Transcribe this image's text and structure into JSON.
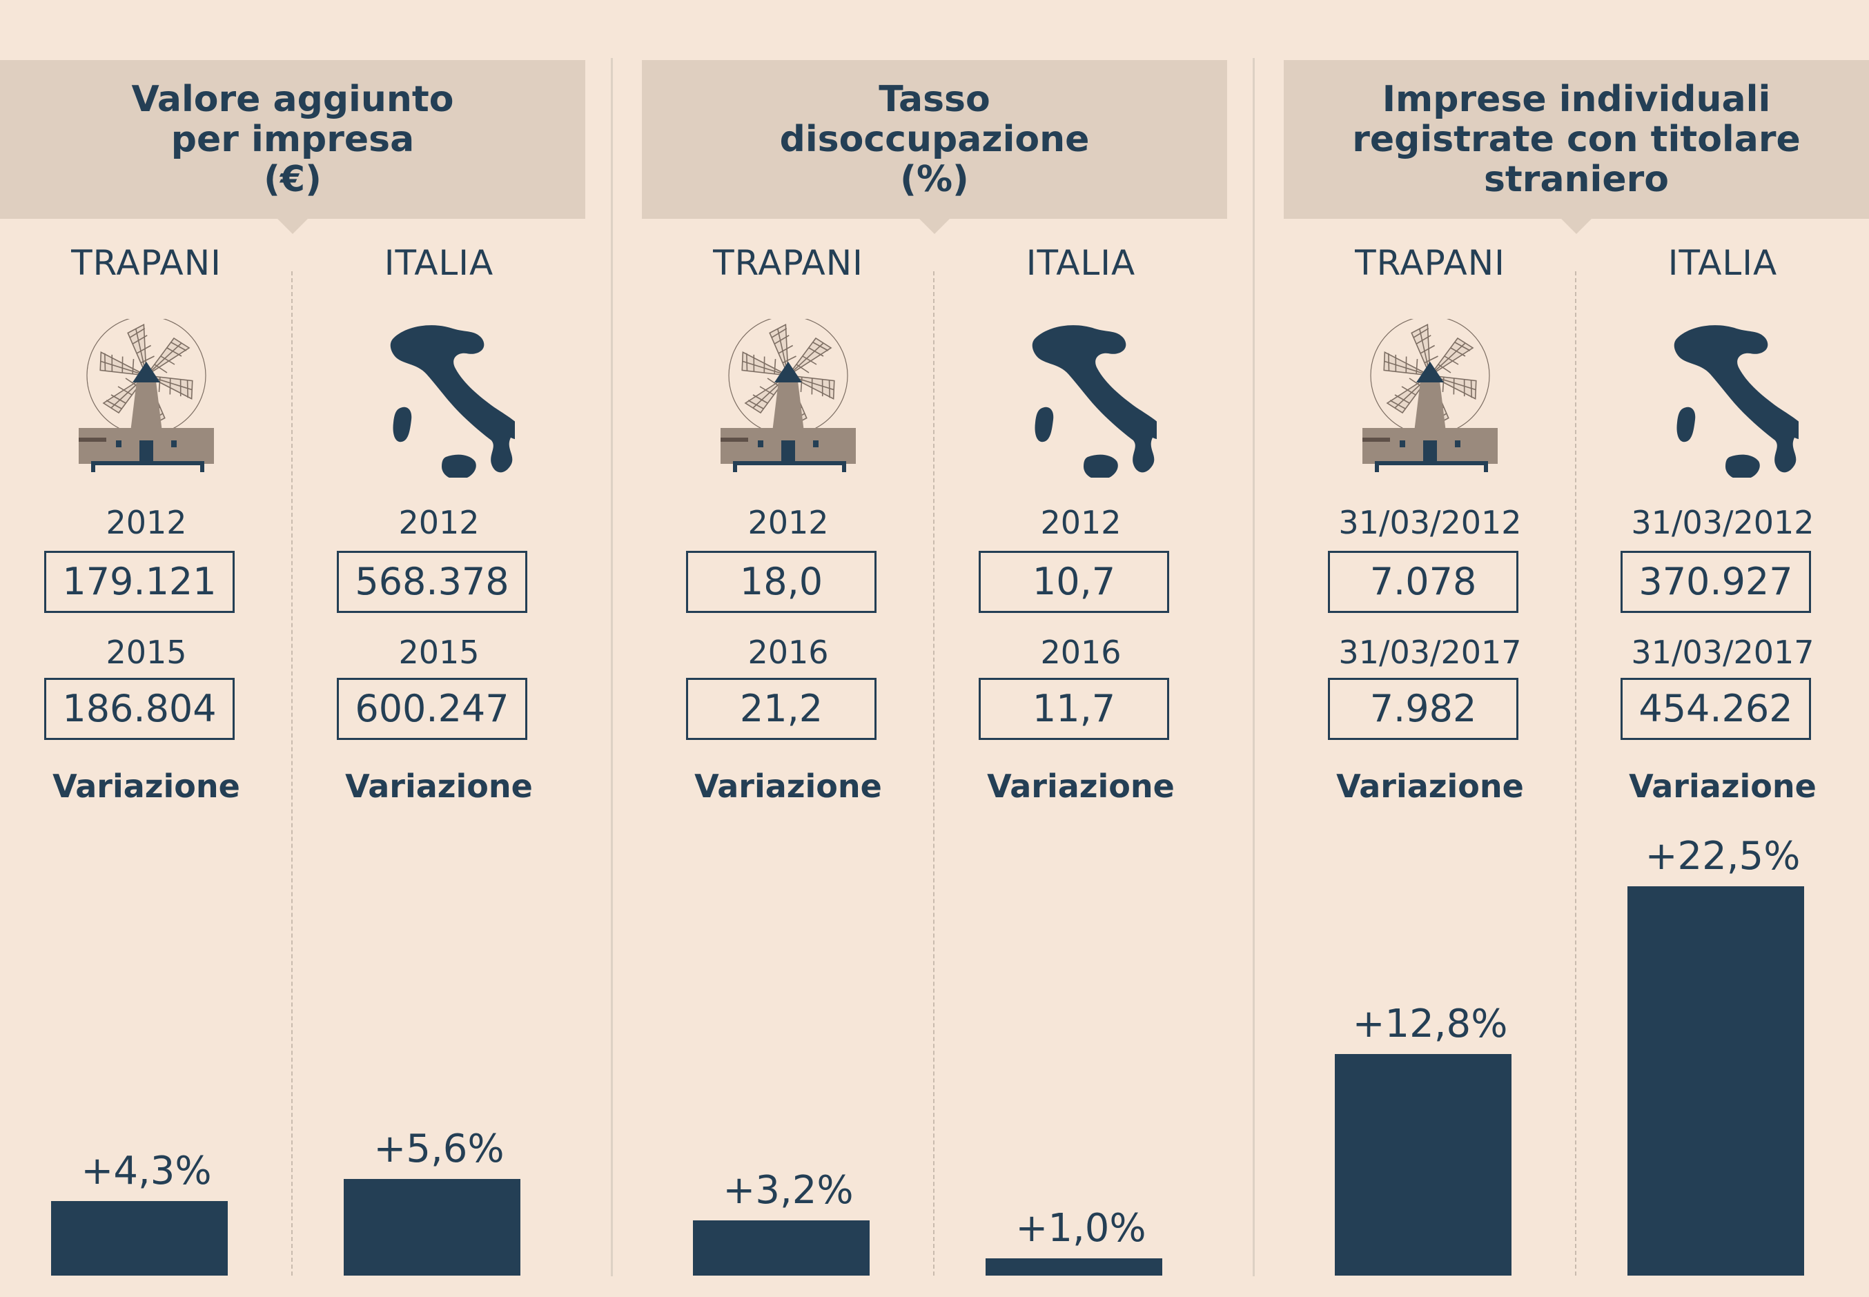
{
  "colors": {
    "background": "#f6e6d8",
    "header": "#dfcfc0",
    "ink": "#243f55",
    "mill": "#9a8a7d"
  },
  "panels": [
    {
      "title_lines": [
        "Valore aggiunto",
        "per impresa",
        "(€)"
      ],
      "columns": [
        {
          "region": "TRAPANI",
          "icon": "windmill-icon",
          "label1": "2012",
          "value1": "179.121",
          "label2": "2015",
          "value2": "186.804",
          "variation_label": "Variazione",
          "variation": "+4,3%"
        },
        {
          "region": "ITALIA",
          "icon": "italy-map-icon",
          "label1": "2012",
          "value1": "568.378",
          "label2": "2015",
          "value2": "600.247",
          "variation_label": "Variazione",
          "variation": "+5,6%"
        }
      ]
    },
    {
      "title_lines": [
        "Tasso",
        "disoccupazione",
        "(%)"
      ],
      "columns": [
        {
          "region": "TRAPANI",
          "icon": "windmill-icon",
          "label1": "2012",
          "value1": "18,0",
          "label2": "2016",
          "value2": "21,2",
          "variation_label": "Variazione",
          "variation": "+3,2%"
        },
        {
          "region": "ITALIA",
          "icon": "italy-map-icon",
          "label1": "2012",
          "value1": "10,7",
          "label2": "2016",
          "value2": "11,7",
          "variation_label": "Variazione",
          "variation": "+1,0%"
        }
      ]
    },
    {
      "title_lines": [
        "Imprese individuali",
        "registrate con titolare",
        "straniero"
      ],
      "columns": [
        {
          "region": "TRAPANI",
          "icon": "windmill-icon",
          "label1": "31/03/2012",
          "value1": "7.078",
          "label2": "31/03/2017",
          "value2": "7.982",
          "variation_label": "Variazione",
          "variation": "+12,8%"
        },
        {
          "region": "ITALIA",
          "icon": "italy-map-icon",
          "label1": "31/03/2012",
          "value1": "370.927",
          "label2": "31/03/2017",
          "value2": "454.262",
          "variation_label": "Variazione",
          "variation": "+22,5%"
        }
      ]
    }
  ],
  "chart_data": {
    "type": "bar",
    "categories": [
      "Valore aggiunto per impresa (€) TRAPANI",
      "Valore aggiunto per impresa (€) ITALIA",
      "Tasso disoccupazione (%) TRAPANI",
      "Tasso disoccupazione (%) ITALIA",
      "Imprese individuali registrate con titolare straniero TRAPANI",
      "Imprese individuali registrate con titolare straniero ITALIA"
    ],
    "values": [
      4.3,
      5.6,
      3.2,
      1.0,
      12.8,
      22.5
    ],
    "value_labels": [
      "+4,3%",
      "+5,6%",
      "+3,2%",
      "+1,0%",
      "+12,8%",
      "+22,5%"
    ],
    "title": "",
    "xlabel": "",
    "ylabel": "Variazione"
  }
}
